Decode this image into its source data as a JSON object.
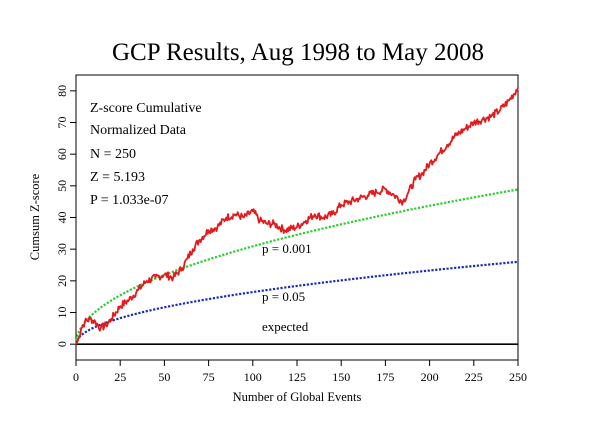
{
  "chart_data": {
    "type": "line",
    "title": "GCP Results, Aug 1998 to May 2008",
    "xlabel": "Number of Global Events",
    "ylabel": "Cumsum Z-score",
    "xlim": [
      0,
      250
    ],
    "ylim": [
      -5,
      85
    ],
    "xticks": [
      0,
      25,
      50,
      75,
      100,
      125,
      150,
      175,
      200,
      225,
      250
    ],
    "yticks": [
      0,
      10,
      20,
      30,
      40,
      50,
      60,
      70,
      80
    ],
    "grid": false,
    "stats_lines": [
      "Z-score Cumulative",
      "Normalized Data",
      "N = 250",
      "Z = 5.193",
      "P = 1.033e-07"
    ],
    "annotations": {
      "p001": "p = 0.001",
      "p05": "p = 0.05",
      "expected": "expected"
    },
    "colors": {
      "cumsum": "#e41a1c",
      "p001": "#2ecc2e",
      "p05": "#1a2ab8",
      "expected": "#000000"
    },
    "series": [
      {
        "key": "cumsum",
        "x": [
          1,
          3,
          5,
          8,
          11,
          14,
          17,
          20,
          25,
          30,
          35,
          40,
          45,
          50,
          55,
          60,
          63,
          66,
          70,
          75,
          80,
          85,
          90,
          95,
          100,
          104,
          108,
          112,
          118,
          125,
          130,
          135,
          140,
          145,
          150,
          155,
          160,
          165,
          170,
          175,
          180,
          185,
          188,
          192,
          196,
          200,
          205,
          210,
          215,
          220,
          225,
          230,
          235,
          240,
          245,
          250
        ],
        "y": [
          1,
          5,
          7,
          8,
          7,
          5,
          6,
          8,
          12,
          14,
          17,
          20,
          21,
          22,
          21,
          24,
          27,
          30,
          33,
          36,
          37,
          40,
          41,
          40,
          42,
          39,
          38,
          38,
          36,
          37,
          39,
          41,
          40,
          41,
          44,
          45,
          46,
          47,
          48,
          49,
          47,
          45,
          48,
          52,
          54,
          57,
          60,
          63,
          66,
          68,
          70,
          71,
          72,
          74,
          77,
          81
        ]
      },
      {
        "key": "p001",
        "formula": "3.09 * sqrt(x)"
      },
      {
        "key": "p05",
        "formula": "1.645 * sqrt(x)"
      },
      {
        "key": "expected",
        "formula": "0"
      }
    ]
  }
}
